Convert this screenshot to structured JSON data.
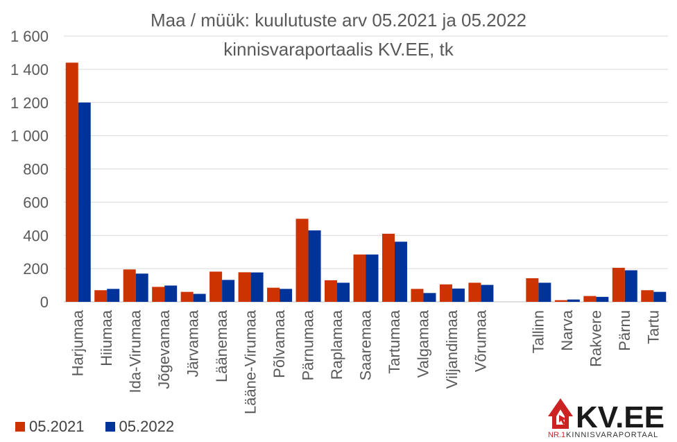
{
  "chart_data": {
    "type": "bar",
    "title": "Maa / müük: kuulutuste arv 05.2021 ja 05.2022",
    "subtitle": "kinnisvaraportaalis KV.EE, tk",
    "categories": [
      "Harjumaa",
      "Hiiumaa",
      "Ida-Virumaa",
      "Jõgevamaa",
      "Järvamaa",
      "Läänemaa",
      "Lääne-Virumaa",
      "Põlvamaa",
      "Pärnumaa",
      "Raplamaa",
      "Saaremaa",
      "Tartumaa",
      "Valgamaa",
      "Viljandimaa",
      "Võrumaa",
      "",
      "Tallinn",
      "Narva",
      "Rakvere",
      "Pärnu",
      "Tartu"
    ],
    "series": [
      {
        "name": "05.2021",
        "color": "#cc3300",
        "values": [
          1440,
          70,
          195,
          90,
          60,
          182,
          178,
          85,
          500,
          130,
          285,
          410,
          78,
          105,
          115,
          null,
          142,
          10,
          35,
          205,
          70
        ]
      },
      {
        "name": "05.2022",
        "color": "#003399",
        "values": [
          1200,
          78,
          170,
          98,
          48,
          132,
          177,
          78,
          430,
          115,
          285,
          362,
          53,
          80,
          102,
          null,
          115,
          14,
          30,
          190,
          60
        ]
      }
    ],
    "yticks": [
      0,
      200,
      400,
      600,
      800,
      1000,
      1200,
      1400,
      1600
    ],
    "ytick_labels": [
      "0",
      "200",
      "400",
      "600",
      "800",
      "1 000",
      "1 200",
      "1 400",
      "1 600"
    ],
    "ylim": [
      0,
      1600
    ],
    "grid": true,
    "legend_position": "bottom-left"
  },
  "logo": {
    "brand": "KV.EE",
    "tagline_prefix": "NR.1",
    "tagline": "KINNISVARAPORTAAL",
    "color": "#cc2222"
  }
}
